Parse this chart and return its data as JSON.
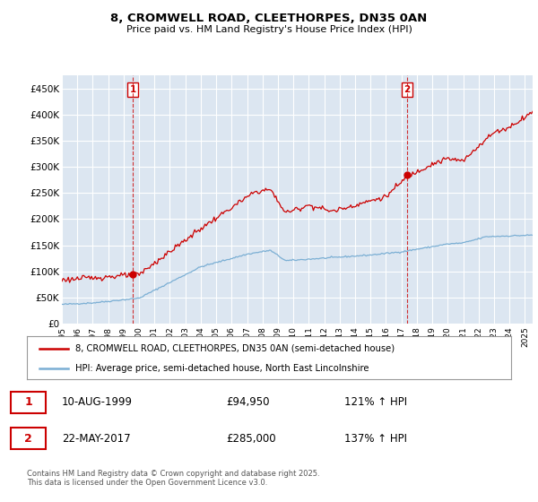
{
  "title": "8, CROMWELL ROAD, CLEETHORPES, DN35 0AN",
  "subtitle": "Price paid vs. HM Land Registry's House Price Index (HPI)",
  "bg_color": "#ffffff",
  "plot_bg_color": "#dce6f1",
  "grid_color": "#ffffff",
  "ylim": [
    0,
    475000
  ],
  "yticks": [
    0,
    50000,
    100000,
    150000,
    200000,
    250000,
    300000,
    350000,
    400000,
    450000
  ],
  "ytick_labels": [
    "£0",
    "£50K",
    "£100K",
    "£150K",
    "£200K",
    "£250K",
    "£300K",
    "£350K",
    "£400K",
    "£450K"
  ],
  "sale1_date": "10-AUG-1999",
  "sale1_price": 94950,
  "sale1_hpi_pct": "121%",
  "sale2_date": "22-MAY-2017",
  "sale2_price": 285000,
  "sale2_hpi_pct": "137%",
  "sale1_x": 1999.6,
  "sale2_x": 2017.38,
  "legend1_label": "8, CROMWELL ROAD, CLEETHORPES, DN35 0AN (semi-detached house)",
  "legend2_label": "HPI: Average price, semi-detached house, North East Lincolnshire",
  "red_color": "#cc0000",
  "blue_color": "#7bafd4",
  "footer_text": "Contains HM Land Registry data © Crown copyright and database right 2025.\nThis data is licensed under the Open Government Licence v3.0.",
  "xstart": 1995.0,
  "xend": 2025.5
}
